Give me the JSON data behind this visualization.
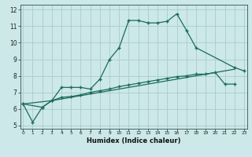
{
  "xlabel": "Humidex (Indice chaleur)",
  "bg_color": "#cce8e8",
  "grid_color": "#aacccc",
  "line_color": "#1a6b5a",
  "line1_x": [
    0,
    1,
    2,
    3,
    4,
    5,
    6,
    7,
    8,
    9,
    10,
    11,
    12,
    13,
    14,
    15,
    16,
    17,
    18,
    22,
    23
  ],
  "line1_y": [
    6.3,
    5.2,
    6.1,
    6.5,
    7.3,
    7.3,
    7.3,
    7.2,
    7.8,
    9.0,
    9.7,
    11.35,
    11.35,
    11.2,
    11.2,
    11.3,
    11.75,
    10.75,
    9.7,
    8.5,
    8.3
  ],
  "line2_x": [
    0,
    2,
    3,
    4,
    5,
    6,
    7,
    8,
    9,
    10,
    11,
    12,
    13,
    14,
    15,
    16,
    17,
    18,
    19,
    20,
    21,
    22
  ],
  "line2_y": [
    6.3,
    6.1,
    6.5,
    6.7,
    6.75,
    6.85,
    7.0,
    7.1,
    7.2,
    7.35,
    7.45,
    7.55,
    7.65,
    7.75,
    7.85,
    7.95,
    8.0,
    8.1,
    8.1,
    8.2,
    7.5,
    7.5
  ],
  "line3_x": [
    0,
    3,
    20,
    21,
    22
  ],
  "line3_y": [
    6.3,
    6.5,
    8.2,
    8.3,
    8.4
  ],
  "xlim": [
    0,
    23
  ],
  "ylim": [
    4.8,
    12.3
  ],
  "yticks": [
    5,
    6,
    7,
    8,
    9,
    10,
    11,
    12
  ],
  "xticks": [
    0,
    1,
    2,
    3,
    4,
    5,
    6,
    7,
    8,
    9,
    10,
    11,
    12,
    13,
    14,
    15,
    16,
    17,
    18,
    19,
    20,
    21,
    22,
    23
  ]
}
